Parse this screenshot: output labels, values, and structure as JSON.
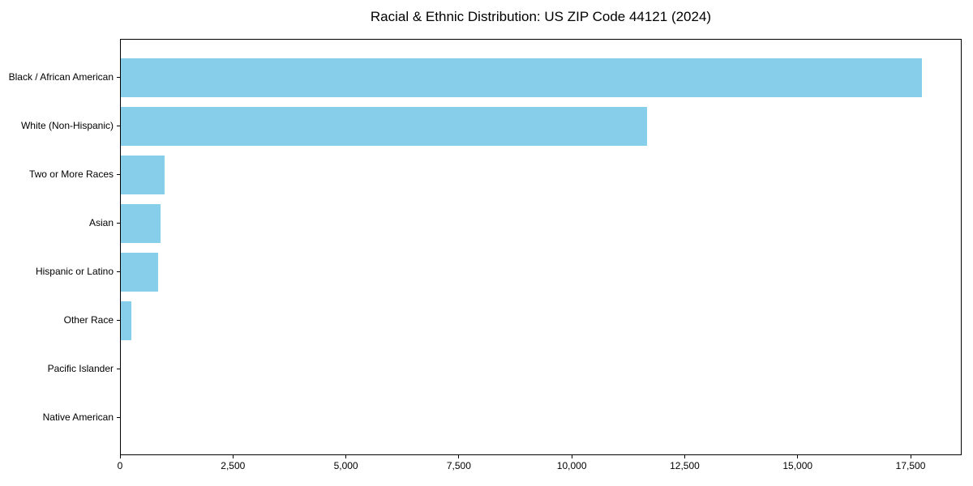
{
  "chart_data": {
    "type": "bar",
    "orientation": "horizontal",
    "title": "Racial & Ethnic Distribution: US ZIP Code 44121 (2024)",
    "categories": [
      "Black / African American",
      "White (Non-Hispanic)",
      "Two or More Races",
      "Asian",
      "Hispanic or Latino",
      "Other Race",
      "Pacific Islander",
      "Native American"
    ],
    "values": [
      17730,
      11650,
      970,
      875,
      820,
      230,
      0,
      0
    ],
    "xlabel": "",
    "ylabel": "",
    "xlim": [
      0,
      18630
    ],
    "x_ticks": [
      0,
      2500,
      5000,
      7500,
      10000,
      12500,
      15000,
      17500
    ],
    "x_tick_labels": [
      "0",
      "2,500",
      "5,000",
      "7,500",
      "10,000",
      "12,500",
      "15,000",
      "17,500"
    ],
    "grid": false,
    "legend": null
  },
  "colors": {
    "bar": "#87CEEB",
    "axis": "#000000",
    "text": "#000000",
    "background": "#ffffff"
  }
}
